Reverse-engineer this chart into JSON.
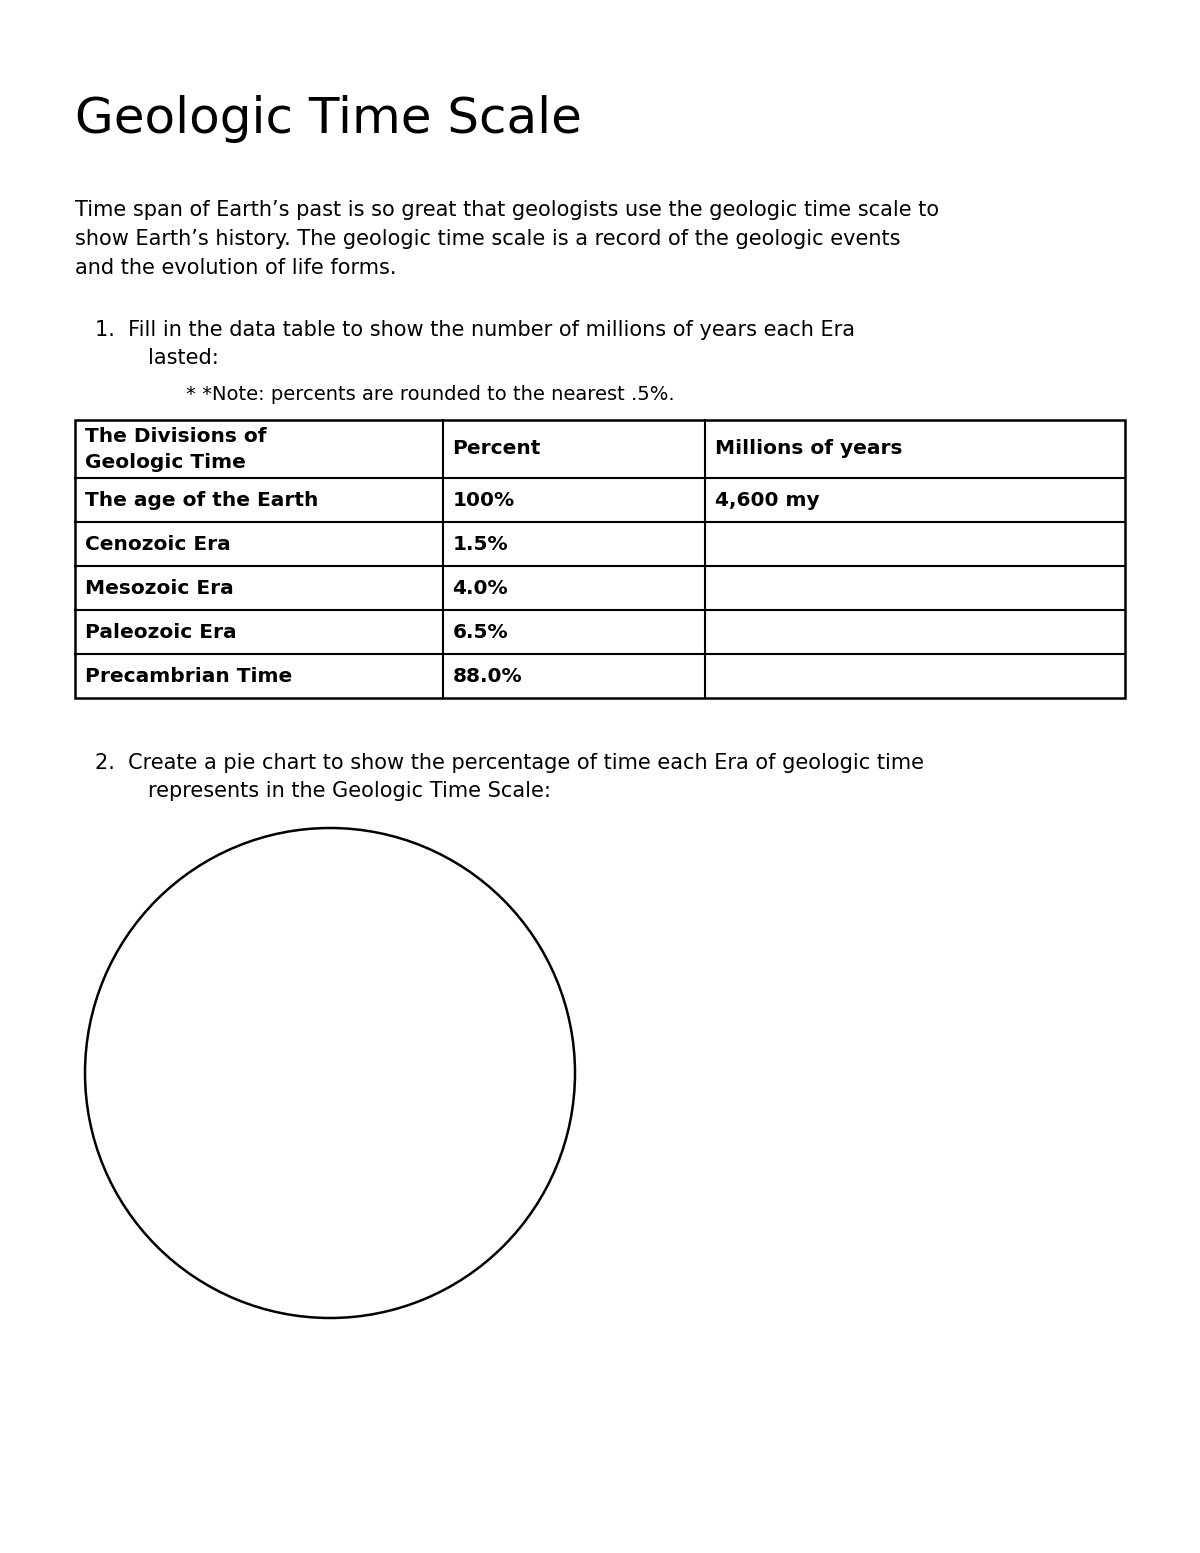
{
  "title": "Geologic Time Scale",
  "intro_text": "Time span of Earth’s past is so great that geologists use the geologic time scale to\nshow Earth’s history. The geologic time scale is a record of the geologic events\nand the evolution of life forms.",
  "item1_line1": "1.  Fill in the data table to show the number of millions of years each Era",
  "item1_line2": "        lasted:",
  "note_text": "* *Note: percents are rounded to the nearest .5%.",
  "table_headers": [
    "The Divisions of\nGeologic Time",
    "Percent",
    "Millions of years"
  ],
  "table_rows": [
    [
      "The age of the Earth",
      "100%",
      "4,600 my"
    ],
    [
      "Cenozoic Era",
      "1.5%",
      ""
    ],
    [
      "Mesozoic Era",
      "4.0%",
      ""
    ],
    [
      "Paleozoic Era",
      "6.5%",
      ""
    ],
    [
      "Precambrian Time",
      "88.0%",
      ""
    ]
  ],
  "item2_line1": "2.  Create a pie chart to show the percentage of time each Era of geologic time",
  "item2_line2": "        represents in the Geologic Time Scale:",
  "bg_color": "#ffffff",
  "text_color": "#000000",
  "title_fontsize": 36,
  "body_fontsize": 15,
  "table_fontsize": 14.5
}
